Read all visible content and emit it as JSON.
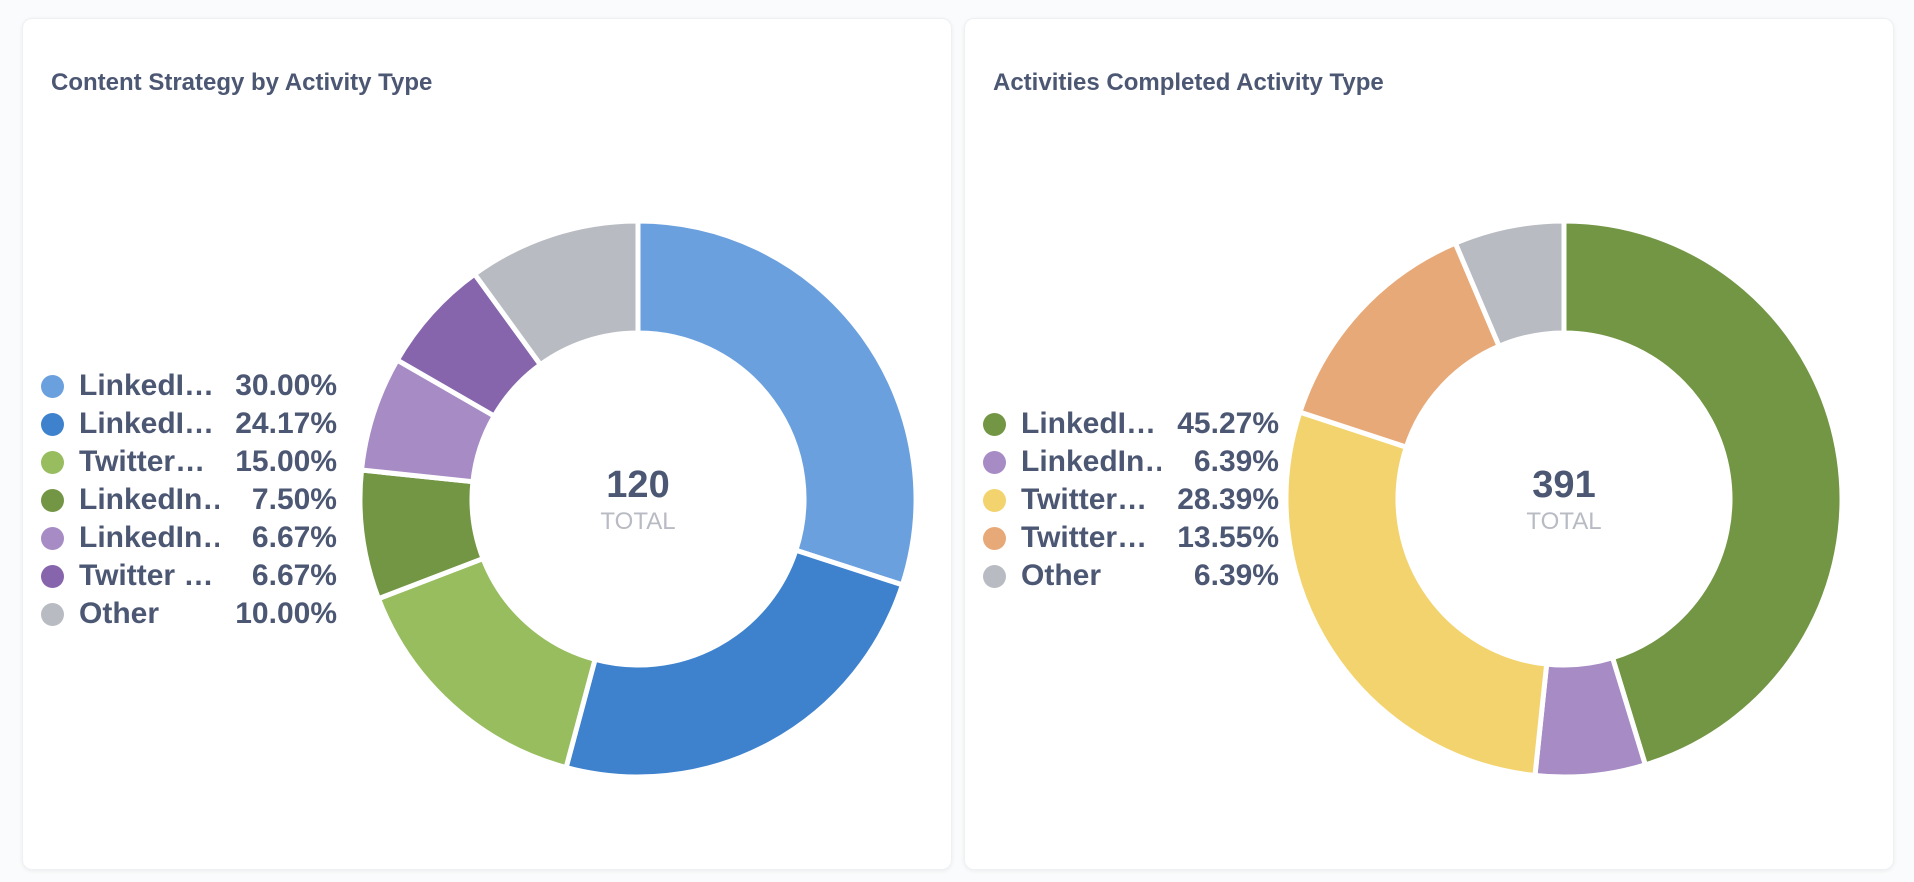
{
  "chart_data": [
    {
      "type": "pie",
      "title": "Content Strategy by Activity Type",
      "center_value": "120",
      "center_label": "TOTAL",
      "slices": [
        {
          "label": "LinkedI…",
          "percent_text": "30.00%",
          "value": 30.0,
          "color": "#6ba0de"
        },
        {
          "label": "LinkedI…",
          "percent_text": "24.17%",
          "value": 24.17,
          "color": "#3e82ce"
        },
        {
          "label": "Twitter…",
          "percent_text": "15.00%",
          "value": 15.0,
          "color": "#97bd5f"
        },
        {
          "label": "LinkedIn…",
          "percent_text": "7.50%",
          "value": 7.5,
          "color": "#739645"
        },
        {
          "label": "LinkedIn…",
          "percent_text": "6.67%",
          "value": 6.67,
          "color": "#a78bc5"
        },
        {
          "label": "Twitter …",
          "percent_text": "6.67%",
          "value": 6.67,
          "color": "#8765ad"
        },
        {
          "label": "Other",
          "percent_text": "10.00%",
          "value": 10.0,
          "color": "#b8bbc2"
        }
      ]
    },
    {
      "type": "pie",
      "title": "Activities Completed Activity Type",
      "center_value": "391",
      "center_label": "TOTAL",
      "slices": [
        {
          "label": "LinkedI…",
          "percent_text": "45.27%",
          "value": 45.27,
          "color": "#739645"
        },
        {
          "label": "LinkedIn…",
          "percent_text": "6.39%",
          "value": 6.39,
          "color": "#a78bc5"
        },
        {
          "label": "Twitter…",
          "percent_text": "28.39%",
          "value": 28.39,
          "color": "#f2d36e"
        },
        {
          "label": "Twitter…",
          "percent_text": "13.55%",
          "value": 13.55,
          "color": "#e8a978"
        },
        {
          "label": "Other",
          "percent_text": "6.39%",
          "value": 6.39,
          "color": "#b8bbc2"
        }
      ]
    }
  ]
}
